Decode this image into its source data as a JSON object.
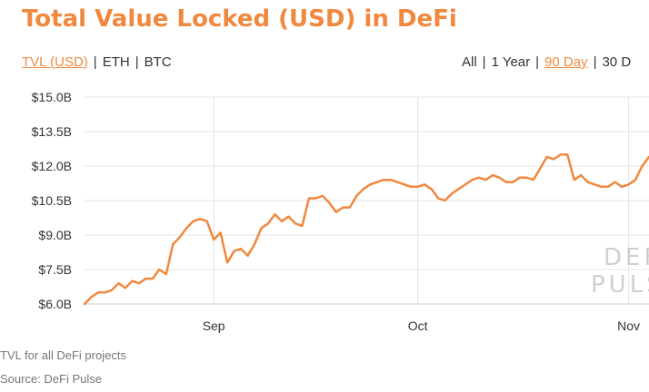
{
  "header": {
    "title": "Total Value Locked (USD) in DeFi"
  },
  "currency_tabs": [
    {
      "label": "TVL (USD)",
      "active": true
    },
    {
      "label": "ETH",
      "active": false
    },
    {
      "label": "BTC",
      "active": false
    }
  ],
  "range_tabs": [
    {
      "label": "All",
      "active": false
    },
    {
      "label": "1 Year",
      "active": false
    },
    {
      "label": "90 Day",
      "active": true
    },
    {
      "label": "30 D",
      "active": false
    }
  ],
  "watermark": [
    "DEFI",
    "PULSE"
  ],
  "footer": {
    "caption": "TVL for all DeFi projects",
    "source": "Source: DeFi Pulse"
  },
  "colors": {
    "accent": "#f0883e",
    "line": "#f0883e",
    "grid": "#e6e6e6",
    "text": "#333333",
    "muted": "#777777"
  },
  "chart_data": {
    "type": "line",
    "title": "Total Value Locked (USD) in DeFi",
    "xlabel": "",
    "ylabel": "",
    "ylim": [
      6.0,
      15.0
    ],
    "y_ticks": [
      6.0,
      7.5,
      9.0,
      10.5,
      12.0,
      13.5,
      15.0
    ],
    "y_tick_labels": [
      "$6.0B",
      "$7.5B",
      "$9.0B",
      "$10.5B",
      "$12.0B",
      "$13.5B",
      "$15.0B"
    ],
    "x_ticks": [
      {
        "label": "Sep",
        "day": 20
      },
      {
        "label": "Oct",
        "day": 50
      },
      {
        "label": "Nov",
        "day": 81
      }
    ],
    "x_range": [
      1,
      84
    ],
    "grid": true,
    "series": [
      {
        "values": [
          6.0,
          6.3,
          6.5,
          6.5,
          6.6,
          6.9,
          6.7,
          7.0,
          6.9,
          7.1,
          7.1,
          7.5,
          7.3,
          8.6,
          8.9,
          9.3,
          9.6,
          9.7,
          9.6,
          8.8,
          9.1,
          7.8,
          8.3,
          8.4,
          8.1,
          8.6,
          9.3,
          9.5,
          9.9,
          9.6,
          9.8,
          9.5,
          9.4,
          10.6,
          10.6,
          10.7,
          10.4,
          10.0,
          10.2,
          10.2,
          10.7,
          11.0,
          11.2,
          11.3,
          11.4,
          11.4,
          11.3,
          11.2,
          11.1,
          11.1,
          11.2,
          11.0,
          10.6,
          10.5,
          10.8,
          11.0,
          11.2,
          11.4,
          11.5,
          11.4,
          11.6,
          11.5,
          11.3,
          11.3,
          11.5,
          11.5,
          11.4,
          11.9,
          12.4,
          12.3,
          12.5,
          12.5,
          11.4,
          11.6,
          11.3,
          11.2,
          11.1,
          11.1,
          11.3,
          11.1,
          11.2,
          11.4,
          12.0,
          12.4
        ]
      }
    ]
  }
}
